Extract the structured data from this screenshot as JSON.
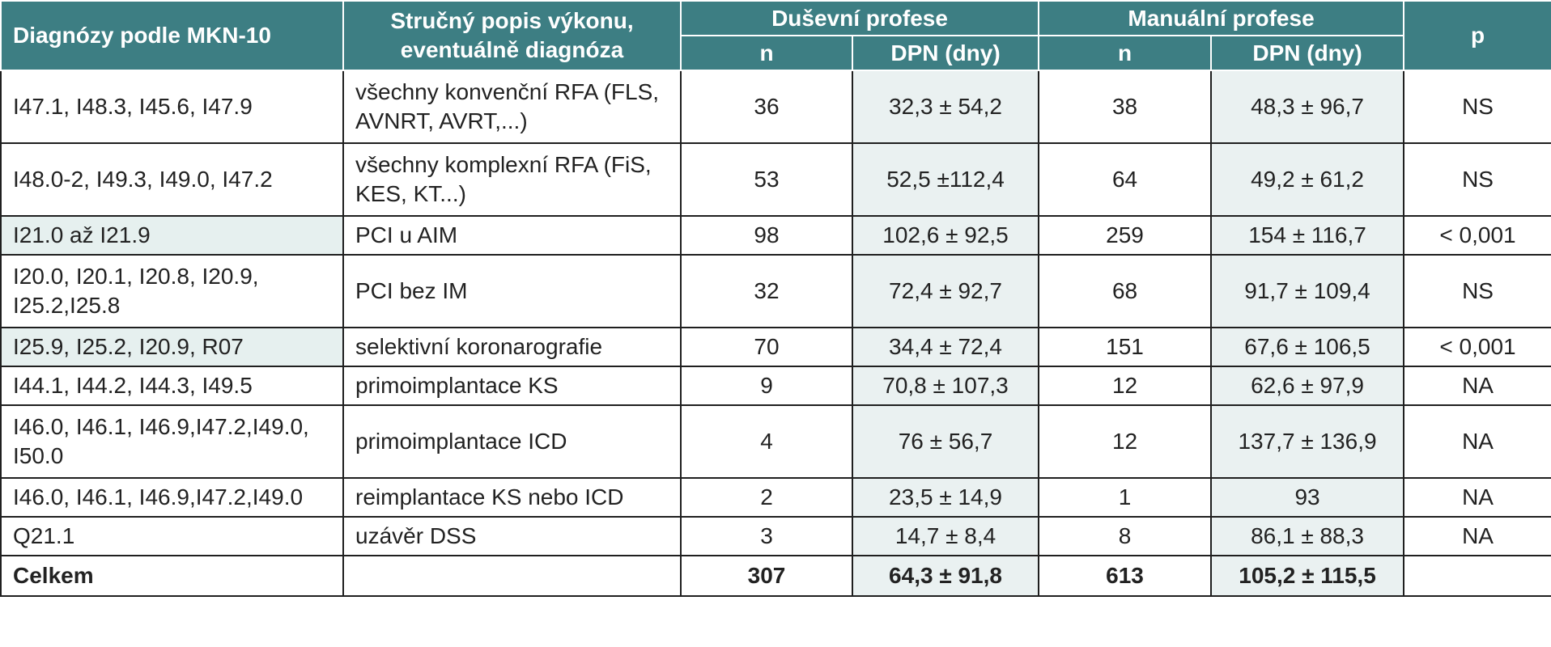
{
  "header": {
    "col_diag": "Diagnózy podle MKN-10",
    "col_desc_line1": "Stručný popis výkonu,",
    "col_desc_line2": "eventuálně diagnóza",
    "group_dusevni": "Duševní profese",
    "group_manualni": "Manuální profese",
    "col_n": "n",
    "col_dpn": "DPN (dny)",
    "col_p": "p"
  },
  "rows": [
    {
      "diag": "I47.1, I48.3, I45.6, I47.9",
      "desc": "všechny konvenční RFA (FLS, AVNRT, AVRT,...)",
      "dn": "36",
      "ddpn": "32,3 ± 54,2",
      "mn": "38",
      "mdpn": "48,3 ± 96,7",
      "p": "NS"
    },
    {
      "diag": "I48.0-2, I49.3, I49.0, I47.2",
      "desc": "všechny komplexní RFA (FiS, KES, KT...)",
      "dn": "53",
      "ddpn": "52,5 ±112,4",
      "mn": "64",
      "mdpn": "49,2 ± 61,2",
      "p": "NS"
    },
    {
      "diag": "I21.0 až I21.9",
      "desc": "PCI u AIM",
      "dn": "98",
      "ddpn": "102,6 ± 92,5",
      "mn": "259",
      "mdpn": "154 ± 116,7",
      "p": "< 0,001"
    },
    {
      "diag": "I20.0, I20.1, I20.8, I20.9, I25.2,I25.8",
      "desc": "PCI bez IM",
      "dn": "32",
      "ddpn": "72,4 ± 92,7",
      "mn": "68",
      "mdpn": "91,7 ± 109,4",
      "p": "NS"
    },
    {
      "diag": "I25.9, I25.2, I20.9, R07",
      "desc": "selektivní koronarografie",
      "dn": "70",
      "ddpn": "34,4 ± 72,4",
      "mn": "151",
      "mdpn": "67,6 ± 106,5",
      "p": "< 0,001"
    },
    {
      "diag": "I44.1, I44.2, I44.3, I49.5",
      "desc": "primoimplantace KS",
      "dn": "9",
      "ddpn": "70,8 ± 107,3",
      "mn": "12",
      "mdpn": "62,6 ± 97,9",
      "p": "NA"
    },
    {
      "diag": "I46.0, I46.1, I46.9,I47.2,I49.0, I50.0",
      "desc": "primoimplantace ICD",
      "dn": "4",
      "ddpn": "76 ± 56,7",
      "mn": "12",
      "mdpn": "137,7 ± 136,9",
      "p": "NA"
    },
    {
      "diag": "I46.0, I46.1, I46.9,I47.2,I49.0",
      "desc": "reimplantace KS nebo ICD",
      "dn": "2",
      "ddpn": "23,5 ± 14,9",
      "mn": "1",
      "mdpn": "93",
      "p": "NA"
    },
    {
      "diag": "Q21.1",
      "desc": "uzávěr DSS",
      "dn": "3",
      "ddpn": "14,7 ± 8,4",
      "mn": "8",
      "mdpn": "86,1 ± 88,3",
      "p": "NA"
    }
  ],
  "total": {
    "diag": "Celkem",
    "desc": "",
    "dn": "307",
    "ddpn": "64,3 ± 91,8",
    "mn": "613",
    "mdpn": "105,2 ± 115,5",
    "p": ""
  }
}
